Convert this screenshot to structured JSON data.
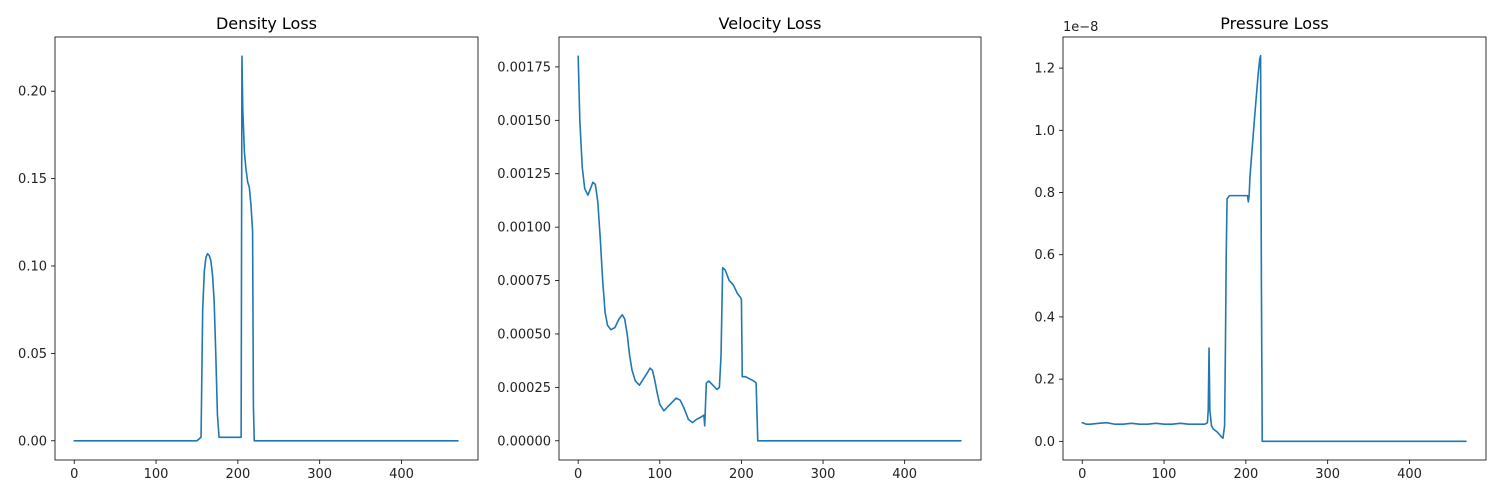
{
  "chart_data": [
    {
      "type": "line",
      "title": "Density Loss",
      "xlim": [
        -23.5,
        493.5
      ],
      "ylim": [
        -0.011,
        0.231
      ],
      "xticks": [
        0,
        100,
        200,
        300,
        400
      ],
      "yticks": [
        0.0,
        0.05,
        0.1,
        0.15,
        0.2
      ],
      "ytick_labels": [
        "0.00",
        "0.05",
        "0.10",
        "0.15",
        "0.20"
      ],
      "offset_label": "",
      "grid": false,
      "series": [
        {
          "color": "#1f77b4",
          "x": [
            0,
            50,
            100,
            150,
            155,
            157,
            159,
            161,
            163,
            165,
            167,
            169,
            171,
            173,
            175,
            177,
            180,
            190,
            200,
            202,
            204,
            205,
            206,
            208,
            210,
            212,
            214,
            216,
            218,
            219,
            220,
            225,
            300,
            400,
            469
          ],
          "y": [
            0.0,
            0.0,
            0.0,
            0.0,
            0.002,
            0.075,
            0.097,
            0.105,
            0.107,
            0.106,
            0.103,
            0.095,
            0.08,
            0.05,
            0.015,
            0.002,
            0.002,
            0.002,
            0.002,
            0.002,
            0.002,
            0.22,
            0.19,
            0.165,
            0.155,
            0.148,
            0.145,
            0.135,
            0.12,
            0.02,
            0.0,
            0.0,
            0.0,
            0.0,
            0.0
          ]
        }
      ]
    },
    {
      "type": "line",
      "title": "Velocity Loss",
      "xlim": [
        -23.5,
        493.5
      ],
      "ylim": [
        -9e-05,
        0.00189
      ],
      "xticks": [
        0,
        100,
        200,
        300,
        400
      ],
      "yticks": [
        0.0,
        0.00025,
        0.0005,
        0.00075,
        0.001,
        0.00125,
        0.0015,
        0.00175
      ],
      "ytick_labels": [
        "0.00000",
        "0.00025",
        "0.00050",
        "0.00075",
        "0.00100",
        "0.00125",
        "0.00150",
        "0.00175"
      ],
      "offset_label": "",
      "grid": false,
      "series": [
        {
          "color": "#1f77b4",
          "x": [
            0,
            2,
            5,
            8,
            12,
            15,
            18,
            21,
            24,
            27,
            30,
            33,
            36,
            40,
            45,
            50,
            54,
            57,
            60,
            63,
            66,
            70,
            75,
            80,
            85,
            88,
            91,
            94,
            97,
            100,
            105,
            110,
            115,
            120,
            125,
            130,
            135,
            140,
            145,
            150,
            154,
            155,
            157,
            160,
            165,
            170,
            173,
            175,
            177,
            180,
            185,
            190,
            195,
            199,
            200,
            201,
            205,
            210,
            215,
            218,
            220,
            225,
            300,
            400,
            469
          ],
          "y": [
            0.0018,
            0.0015,
            0.00128,
            0.00118,
            0.00115,
            0.00118,
            0.00121,
            0.0012,
            0.00112,
            0.00095,
            0.00075,
            0.0006,
            0.00054,
            0.00052,
            0.00053,
            0.00057,
            0.00059,
            0.00057,
            0.0005,
            0.0004,
            0.00033,
            0.00028,
            0.00026,
            0.00029,
            0.00032,
            0.00034,
            0.00033,
            0.00028,
            0.00022,
            0.00017,
            0.00014,
            0.00016,
            0.00018,
            0.0002,
            0.00019,
            0.00015,
            0.0001,
            8.5e-05,
            0.0001,
            0.00011,
            0.00012,
            7e-05,
            0.00027,
            0.00028,
            0.00026,
            0.00024,
            0.00025,
            0.0004,
            0.00081,
            0.0008,
            0.00075,
            0.00073,
            0.00069,
            0.00067,
            0.00066,
            0.0003,
            0.0003,
            0.00029,
            0.00028,
            0.00027,
            0.0,
            0.0,
            0.0,
            0.0,
            0.0
          ]
        }
      ]
    },
    {
      "type": "line",
      "title": "Pressure Loss",
      "xlim": [
        -23.5,
        493.5
      ],
      "ylim": [
        -0.06,
        1.3
      ],
      "xticks": [
        0,
        100,
        200,
        300,
        400
      ],
      "yticks": [
        0.0,
        0.2,
        0.4,
        0.6,
        0.8,
        1.0,
        1.2
      ],
      "ytick_labels": [
        "0.0",
        "0.2",
        "0.4",
        "0.6",
        "0.8",
        "1.0",
        "1.2"
      ],
      "offset_label": "1e−8",
      "grid": false,
      "series": [
        {
          "color": "#1f77b4",
          "x": [
            0,
            5,
            10,
            20,
            30,
            40,
            50,
            60,
            70,
            80,
            90,
            100,
            110,
            120,
            130,
            140,
            150,
            153,
            154,
            155,
            156,
            158,
            160,
            165,
            170,
            172,
            174,
            175,
            176,
            177,
            180,
            190,
            200,
            202,
            203,
            204,
            205,
            210,
            215,
            217,
            218,
            219,
            220,
            300,
            400,
            469
          ],
          "y": [
            0.06,
            0.055,
            0.055,
            0.058,
            0.06,
            0.055,
            0.055,
            0.058,
            0.055,
            0.055,
            0.058,
            0.055,
            0.055,
            0.058,
            0.055,
            0.055,
            0.055,
            0.06,
            0.1,
            0.3,
            0.1,
            0.05,
            0.04,
            0.03,
            0.015,
            0.01,
            0.05,
            0.3,
            0.6,
            0.78,
            0.79,
            0.79,
            0.79,
            0.79,
            0.77,
            0.79,
            0.85,
            1.02,
            1.18,
            1.23,
            1.24,
            0.5,
            0.0,
            0.0,
            0.0,
            0.0
          ]
        }
      ]
    }
  ]
}
